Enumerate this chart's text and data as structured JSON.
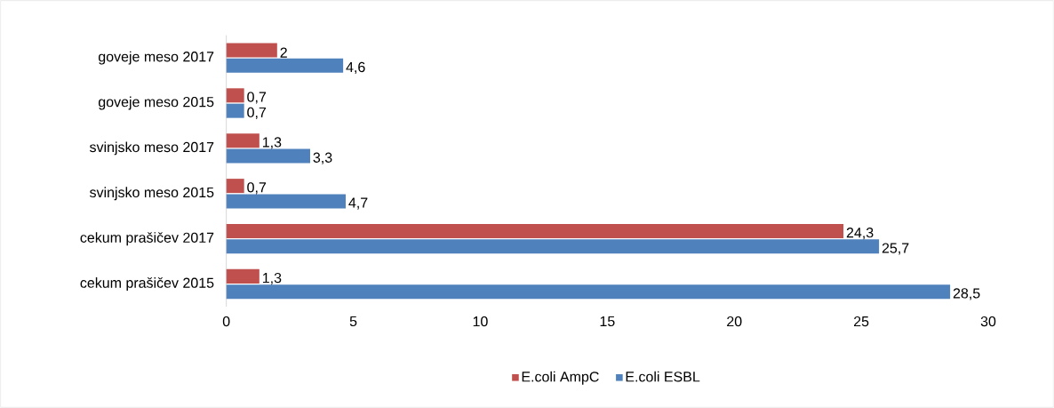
{
  "chart_data": {
    "type": "bar",
    "orientation": "horizontal",
    "categories": [
      "goveje meso 2017",
      "goveje meso 2015",
      "svinjsko meso 2017",
      "svinjsko meso 2015",
      "cekum prašičev 2017",
      "cekum prašičev 2015"
    ],
    "series": [
      {
        "name": "E.coli AmpC",
        "color": "#c0504d",
        "values": [
          2,
          0.7,
          1.3,
          0.7,
          24.3,
          1.3
        ],
        "value_labels": [
          "2",
          "0,7",
          "1,3",
          "0,7",
          "24,3",
          "1,3"
        ]
      },
      {
        "name": "E.coli ESBL",
        "color": "#4f81bd",
        "values": [
          4.6,
          0.7,
          3.3,
          4.7,
          25.7,
          28.5
        ],
        "value_labels": [
          "4,6",
          "0,7",
          "3,3",
          "4,7",
          "25,7",
          "28,5"
        ]
      }
    ],
    "xlim": [
      0,
      30
    ],
    "xticks": [
      0,
      5,
      10,
      15,
      20,
      25,
      30
    ],
    "grid": false,
    "legend": "bottom"
  }
}
